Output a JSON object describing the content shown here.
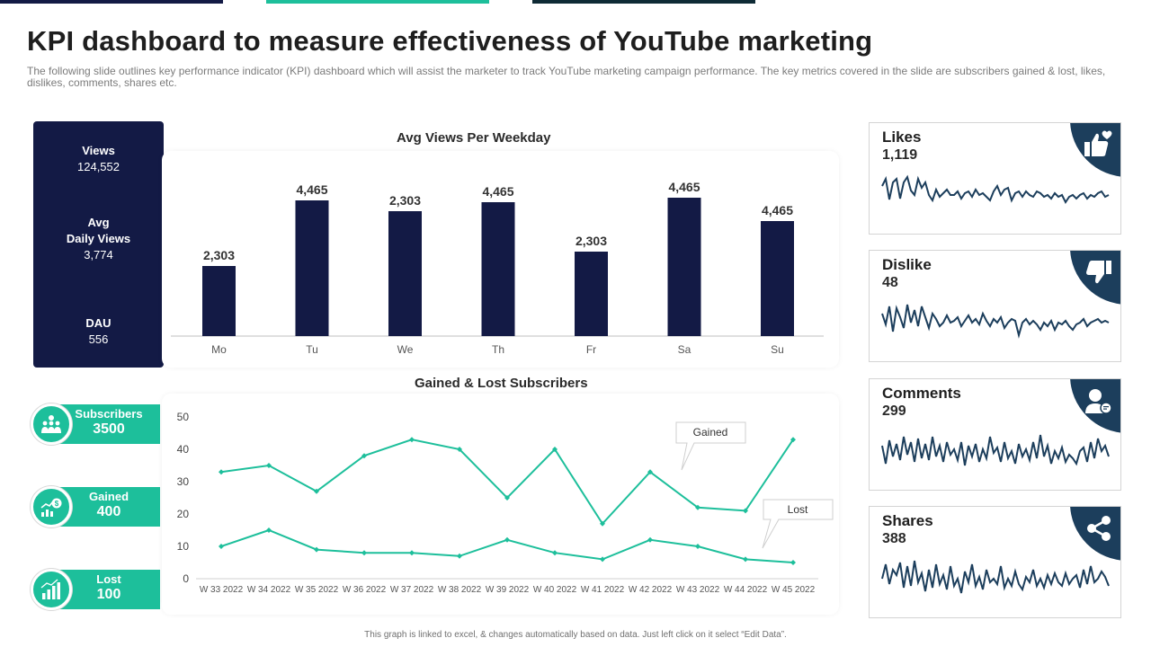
{
  "title": "KPI dashboard to measure effectiveness of YouTube marketing",
  "subtitle": "The following slide outlines key performance indicator (KPI) dashboard which will assist the marketer to track YouTube marketing campaign performance. The key metrics covered in the slide are subscribers gained & lost, likes, dislikes, comments, shares etc.",
  "colors": {
    "navy": "#131a45",
    "teal": "#1dbf9b",
    "slate": "#1c3e5c",
    "dark": "#0f2b35"
  },
  "stats": {
    "views_label": "Views",
    "views_value": "124,552",
    "avg_label_1": "Avg",
    "avg_label_2": "Daily Views",
    "avg_value": "3,774",
    "dau_label": "DAU",
    "dau_value": "556"
  },
  "subscribers": {
    "total_label": "Subscribers",
    "total_value": "3500",
    "gained_label": "Gained",
    "gained_value": "400",
    "lost_label": "Lost",
    "lost_value": "100"
  },
  "metrics": [
    {
      "name": "Likes",
      "value": "1,119",
      "icon": "thumbs-up-heart-icon"
    },
    {
      "name": "Dislike",
      "value": "48",
      "icon": "thumbs-down-icon"
    },
    {
      "name": "Comments",
      "value": "299",
      "icon": "comment-user-icon"
    },
    {
      "name": "Shares",
      "value": "388",
      "icon": "share-icon"
    }
  ],
  "footer": "This graph is linked to excel, & changes automatically based on data. Just left click on it select “Edit Data”.",
  "chart_data": [
    {
      "type": "bar",
      "title": "Avg Views Per Weekday",
      "categories": [
        "Mo",
        "Tu",
        "We",
        "Th",
        "Fr",
        "Sa",
        "Su"
      ],
      "values": [
        2303,
        4465,
        2303,
        4465,
        2303,
        4465,
        4465
      ],
      "labels": [
        "2,303",
        "4,465",
        "2,303",
        "4,465",
        "2,303",
        "4,465",
        "4,465"
      ],
      "heights": [
        78,
        151,
        139,
        149,
        94,
        154,
        128
      ],
      "color": "#131a45",
      "xlabel": "",
      "ylabel": ""
    },
    {
      "type": "line",
      "title": "Gained & Lost Subscribers",
      "x": [
        "W 33 2022",
        "W 34 2022",
        "W 35 2022",
        "W 36 2022",
        "W 37 2022",
        "W 38 2022",
        "W 39 2022",
        "W 40 2022",
        "W 41 2022",
        "W 42 2022",
        "W 43 2022",
        "W 44 2022",
        "W 45 2022"
      ],
      "series": [
        {
          "name": "Gained",
          "values": [
            33,
            35,
            27,
            38,
            43,
            40,
            25,
            40,
            17,
            33,
            22,
            21,
            43
          ]
        },
        {
          "name": "Lost",
          "values": [
            10,
            15,
            9,
            8,
            8,
            7,
            12,
            8,
            6,
            12,
            10,
            6,
            5
          ]
        }
      ],
      "yticks": [
        0,
        10,
        20,
        30,
        40,
        50
      ],
      "ylim": [
        0,
        50
      ],
      "color": "#1dbf9b"
    }
  ]
}
